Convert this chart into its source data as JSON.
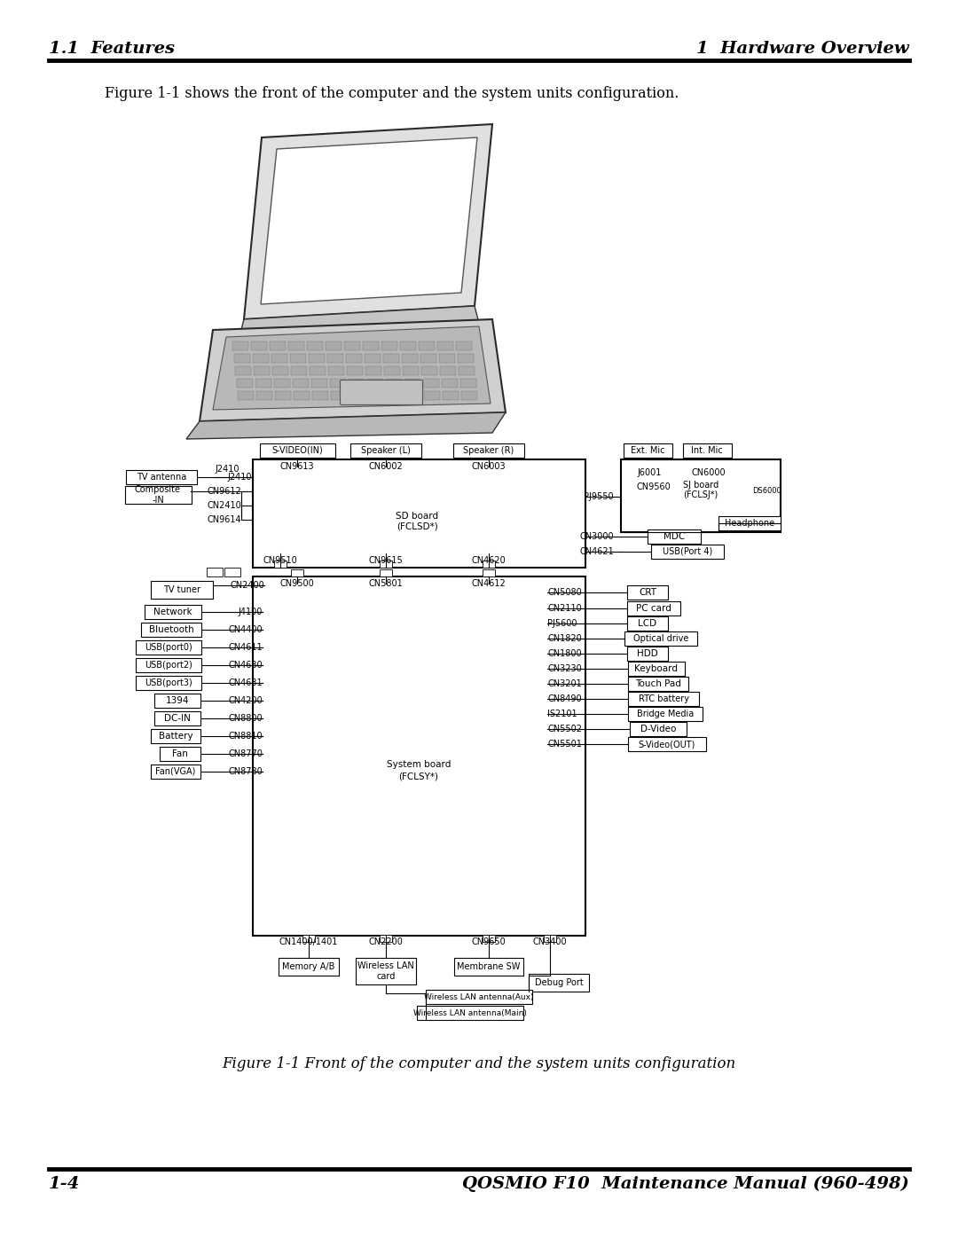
{
  "header_left": "1.1  Features",
  "header_right": "1  Hardware Overview",
  "body_text": "Figure 1-1 shows the front of the computer and the system units configuration.",
  "figure_caption": "Figure 1-1 Front of the computer and the system units configuration",
  "footer_left": "1-4",
  "footer_right": "QOSMIO F10  Maintenance Manual (960-498)",
  "bg_color": "#ffffff",
  "text_color": "#000000",
  "line_color": "#000000"
}
